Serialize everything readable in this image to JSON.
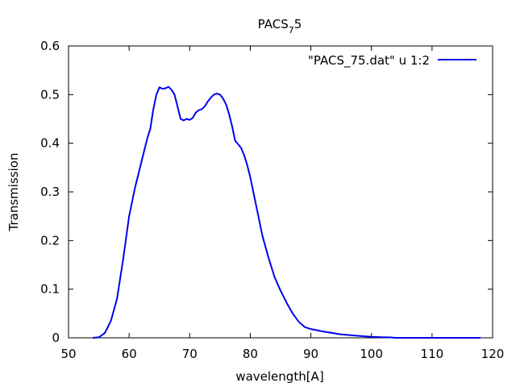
{
  "chart_data": {
    "type": "line",
    "title_main": "PACS",
    "title_sub": "7",
    "title_tail": "5",
    "xlabel": "wavelength[A]",
    "ylabel": "Transmission",
    "xlim": [
      50,
      120
    ],
    "ylim": [
      0,
      0.6
    ],
    "x_ticks": [
      50,
      60,
      70,
      80,
      90,
      100,
      110,
      120
    ],
    "x_tick_labels": [
      "50",
      "60",
      "70",
      "80",
      "90",
      "100",
      "110",
      "120"
    ],
    "y_ticks": [
      0,
      0.1,
      0.2,
      0.3,
      0.4,
      0.5,
      0.6
    ],
    "y_tick_labels": [
      "0",
      "0.1",
      "0.2",
      "0.3",
      "0.4",
      "0.5",
      "0.6"
    ],
    "grid": false,
    "legend_position": "top-right",
    "series_color": "#0000ee",
    "series": [
      {
        "name": "\"PACS_75.dat\" u 1:2",
        "x": [
          54.0,
          55.0,
          56.0,
          57.0,
          58.0,
          59.0,
          60.0,
          61.0,
          62.0,
          63.0,
          63.5,
          64.0,
          64.5,
          65.0,
          65.5,
          66.0,
          66.5,
          67.0,
          67.5,
          68.0,
          68.5,
          69.0,
          69.5,
          70.0,
          70.5,
          71.0,
          71.5,
          72.0,
          72.5,
          73.0,
          73.5,
          74.0,
          74.5,
          75.0,
          75.5,
          76.0,
          76.5,
          77.0,
          77.5,
          78.0,
          78.5,
          79.0,
          79.5,
          80.0,
          81.0,
          82.0,
          83.0,
          84.0,
          85.0,
          86.0,
          87.0,
          88.0,
          89.0,
          90.0,
          92.0,
          95.0,
          98.0,
          100.0,
          102.0,
          103.0,
          104.0,
          106.0,
          110.0,
          115.0,
          118.0
        ],
        "y": [
          0.0,
          0.001,
          0.01,
          0.035,
          0.08,
          0.16,
          0.25,
          0.31,
          0.36,
          0.41,
          0.43,
          0.47,
          0.5,
          0.515,
          0.512,
          0.513,
          0.516,
          0.51,
          0.5,
          0.475,
          0.45,
          0.447,
          0.45,
          0.448,
          0.452,
          0.463,
          0.468,
          0.47,
          0.476,
          0.486,
          0.494,
          0.5,
          0.502,
          0.5,
          0.492,
          0.48,
          0.46,
          0.435,
          0.405,
          0.398,
          0.39,
          0.375,
          0.355,
          0.33,
          0.27,
          0.21,
          0.165,
          0.125,
          0.097,
          0.072,
          0.05,
          0.033,
          0.022,
          0.018,
          0.013,
          0.007,
          0.004,
          0.002,
          0.001,
          0.001,
          0.0,
          0.0,
          0.0,
          0.0,
          0.0
        ]
      }
    ]
  }
}
